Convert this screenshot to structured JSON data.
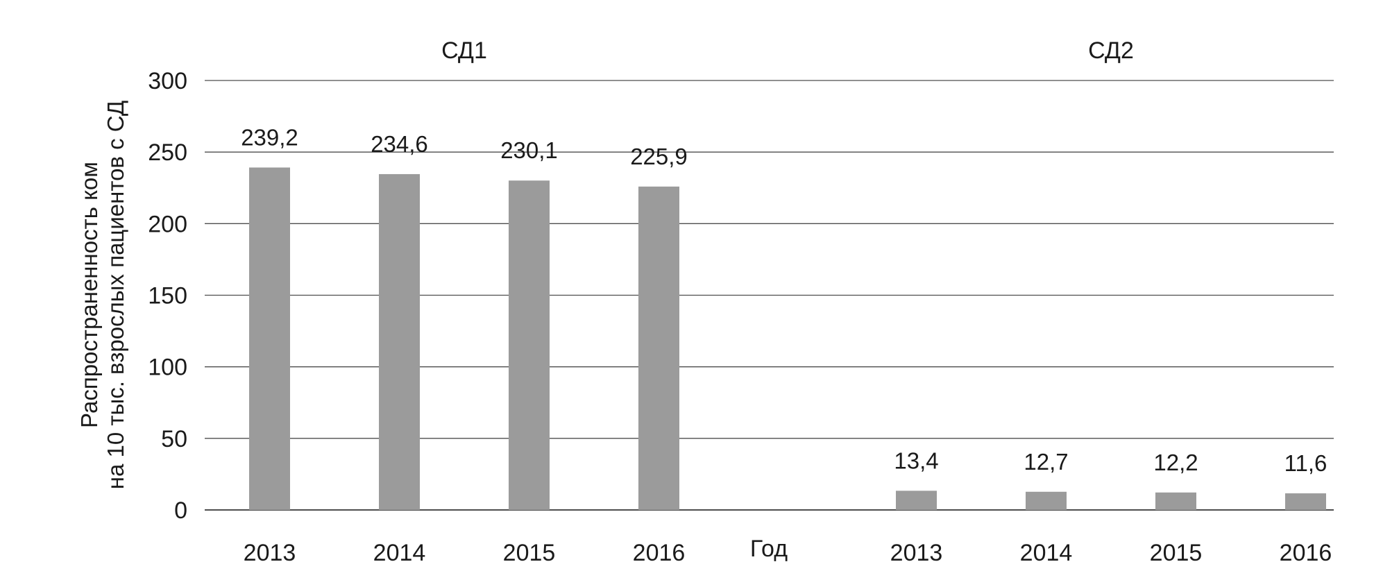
{
  "chart_data": {
    "type": "bar",
    "ylabel": [
      "Распространенность ком",
      "на 10 тыс. взрослых пациентов с СД"
    ],
    "xlabel": "Год",
    "ylim": [
      0,
      300
    ],
    "yticks": [
      0,
      50,
      100,
      150,
      200,
      250,
      300
    ],
    "grid": true,
    "bar_color": "#9b9b9b",
    "groups": [
      {
        "title": "СД1",
        "categories": [
          "2013",
          "2014",
          "2015",
          "2016"
        ],
        "values": [
          239.2,
          234.6,
          230.1,
          225.9
        ],
        "value_labels": [
          "239,2",
          "234,6",
          "230,1",
          "225,9"
        ]
      },
      {
        "title": "СД2",
        "categories": [
          "2013",
          "2014",
          "2015",
          "2016"
        ],
        "values": [
          13.4,
          12.7,
          12.2,
          11.6
        ],
        "value_labels": [
          "13,4",
          "12,7",
          "12,2",
          "11,6"
        ]
      }
    ]
  }
}
